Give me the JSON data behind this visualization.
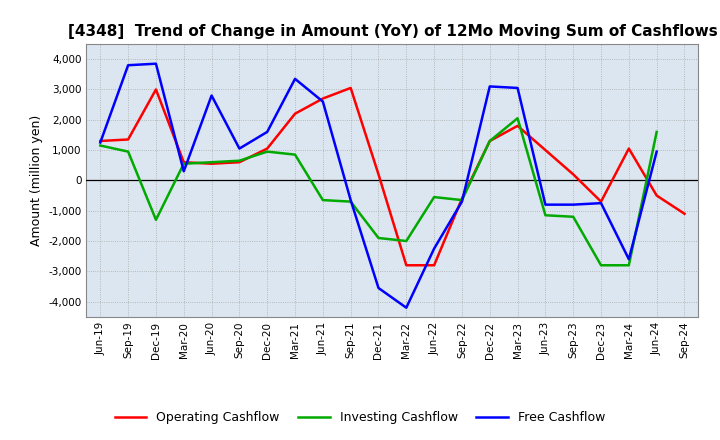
{
  "title": "[4348]  Trend of Change in Amount (YoY) of 12Mo Moving Sum of Cashflows",
  "ylabel": "Amount (million yen)",
  "ylim": [
    -4500,
    4500
  ],
  "yticks": [
    -4000,
    -3000,
    -2000,
    -1000,
    0,
    1000,
    2000,
    3000,
    4000
  ],
  "x_labels": [
    "Jun-19",
    "Sep-19",
    "Dec-19",
    "Mar-20",
    "Jun-20",
    "Sep-20",
    "Dec-20",
    "Mar-21",
    "Jun-21",
    "Sep-21",
    "Dec-21",
    "Mar-22",
    "Jun-22",
    "Sep-22",
    "Dec-22",
    "Mar-23",
    "Jun-23",
    "Sep-23",
    "Dec-23",
    "Mar-24",
    "Jun-24",
    "Sep-24"
  ],
  "operating": [
    1300,
    1350,
    3000,
    600,
    550,
    600,
    1050,
    2200,
    2700,
    3050,
    200,
    -2800,
    -2800,
    -600,
    1300,
    1800,
    1000,
    200,
    -700,
    1050,
    -500,
    -1100
  ],
  "investing": [
    1150,
    950,
    -1300,
    550,
    600,
    650,
    950,
    850,
    -650,
    -700,
    -1900,
    -2000,
    -550,
    -650,
    1300,
    2050,
    -1150,
    -1200,
    -2800,
    -2800,
    1600,
    null
  ],
  "free": [
    1250,
    3800,
    3850,
    300,
    2800,
    1050,
    1600,
    3350,
    2600,
    -650,
    -3550,
    -4200,
    -2250,
    -700,
    3100,
    3050,
    -800,
    -800,
    -750,
    -2600,
    950,
    null
  ],
  "operating_color": "#FF0000",
  "investing_color": "#00AA00",
  "free_color": "#0000FF",
  "plot_bg_color": "#dce6f0",
  "fig_bg_color": "#FFFFFF",
  "grid_color": "#AAAAAA",
  "legend_labels": [
    "Operating Cashflow",
    "Investing Cashflow",
    "Free Cashflow"
  ],
  "line_width": 1.8,
  "title_fontsize": 11,
  "ylabel_fontsize": 9,
  "tick_fontsize": 7.5,
  "legend_fontsize": 9
}
